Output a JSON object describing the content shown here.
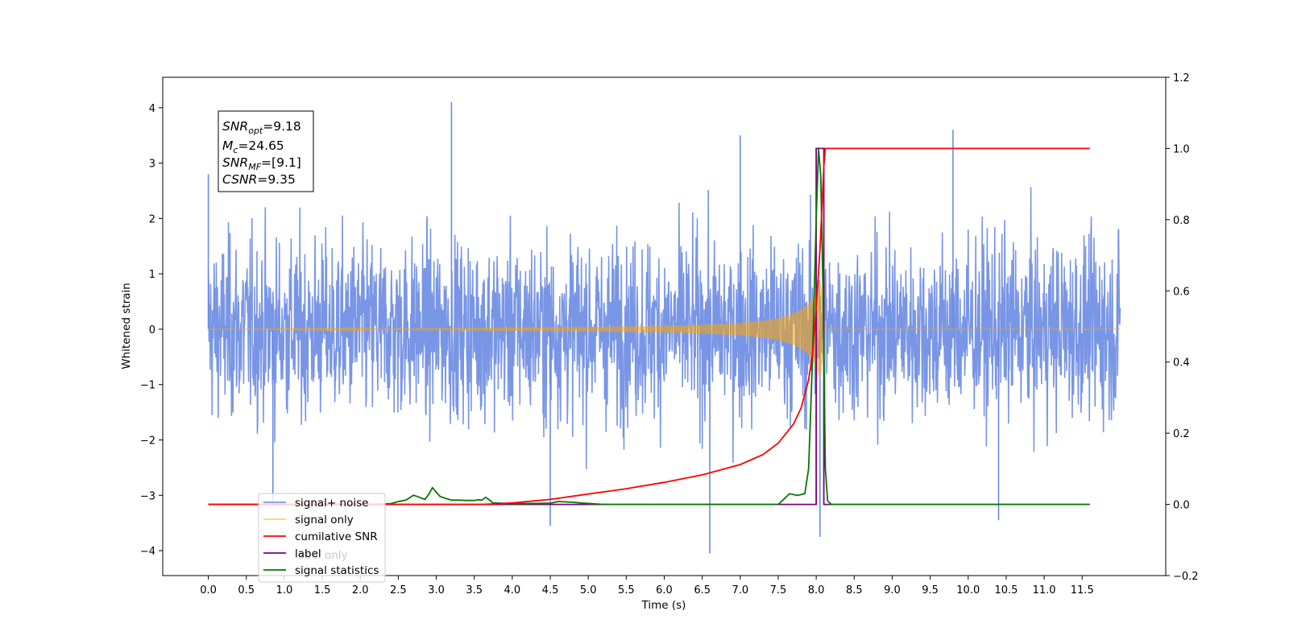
{
  "chart_data": {
    "type": "line",
    "xlabel": "Time (s)",
    "ylabel": "Whitened strain",
    "xlim": [
      -0.6,
      12.6
    ],
    "ylim": [
      -4.45,
      4.55
    ],
    "y2lim": [
      -0.2,
      1.2
    ],
    "x_ticks": [
      0.0,
      0.5,
      1.0,
      1.5,
      2.0,
      2.5,
      3.0,
      3.5,
      4.0,
      4.5,
      5.0,
      5.5,
      6.0,
      6.5,
      7.0,
      7.5,
      8.0,
      8.5,
      9.0,
      9.5,
      10.0,
      10.5,
      11.0,
      11.5
    ],
    "x_tick_labels": [
      "0.0",
      "0.5",
      "1.0",
      "1.5",
      "2.0",
      "2.5",
      "3.0",
      "3.5",
      "4.0",
      "4.5",
      "5.0",
      "5.5",
      "6.0",
      "6.5",
      "7.0",
      "7.5",
      "8.0",
      "8.5",
      "9.0",
      "9.5",
      "10.0",
      "10.5",
      "11.0",
      "11.5"
    ],
    "y_ticks": [
      -4,
      -3,
      -2,
      -1,
      0,
      1,
      2,
      3,
      4
    ],
    "y_tick_labels": [
      "−4",
      "−3",
      "−2",
      "−1",
      "0",
      "1",
      "2",
      "3",
      "4"
    ],
    "y2_ticks": [
      -0.2,
      0.0,
      0.2,
      0.4,
      0.6,
      0.8,
      1.0,
      1.2
    ],
    "y2_tick_labels": [
      "−0.2",
      "0.0",
      "0.2",
      "0.4",
      "0.6",
      "0.8",
      "1.0",
      "1.2"
    ],
    "grid": false,
    "legend_position": "bottom-left",
    "legend": [
      "signal+ noise",
      "signal only",
      "cumilative SNR",
      "label",
      "signal statistics"
    ],
    "hidden_legend_entry": "label only",
    "annotation": {
      "line1": {
        "main": "SNR",
        "sub": "opt",
        "value": "=9.18"
      },
      "line2": {
        "main": "M",
        "sub": "c",
        "value": "=24.65"
      },
      "line3": {
        "main": "SNR",
        "sub": "MF",
        "value": "=[9.1]"
      },
      "line4": {
        "main": "CSNR",
        "value": "=9.35"
      }
    },
    "series": [
      {
        "name": "signal+ noise",
        "axis": "left",
        "color": "#6a8be3",
        "x_range": [
          0.0,
          12.0
        ],
        "approx_envelope": [
          -2.6,
          2.6
        ],
        "notable_peaks": [
          [
            0.0,
            2.8
          ],
          [
            3.2,
            4.1
          ],
          [
            9.8,
            3.6
          ],
          [
            7.0,
            3.5
          ],
          [
            6.6,
            -4.05
          ],
          [
            8.05,
            -3.75
          ],
          [
            4.5,
            -3.55
          ],
          [
            10.4,
            -3.45
          ],
          [
            0.85,
            -3.2
          ]
        ]
      },
      {
        "name": "signal only",
        "axis": "left",
        "color": "#ffa500",
        "x": [
          0.0,
          2.0,
          3.0,
          4.0,
          5.0,
          6.0,
          6.5,
          7.0,
          7.3,
          7.5,
          7.7,
          7.8,
          7.9,
          7.95,
          8.0,
          8.05,
          8.08,
          8.1,
          12.0
        ],
        "amplitude": [
          0.0,
          0.01,
          0.02,
          0.03,
          0.04,
          0.06,
          0.08,
          0.11,
          0.15,
          0.2,
          0.28,
          0.35,
          0.45,
          0.55,
          0.7,
          0.9,
          0.6,
          0.0,
          0.0
        ]
      },
      {
        "name": "cumilative SNR",
        "axis": "right",
        "color": "#ff0000",
        "x": [
          0.0,
          3.6,
          4.0,
          4.5,
          5.0,
          5.5,
          6.0,
          6.5,
          7.0,
          7.3,
          7.5,
          7.7,
          7.8,
          7.9,
          7.95,
          8.0,
          8.05,
          8.1,
          8.12,
          11.6
        ],
        "y": [
          0.0,
          0.0,
          0.004,
          0.014,
          0.029,
          0.044,
          0.062,
          0.083,
          0.112,
          0.14,
          0.172,
          0.225,
          0.27,
          0.35,
          0.42,
          0.55,
          0.72,
          0.95,
          1.0,
          1.0
        ]
      },
      {
        "name": "label",
        "axis": "right",
        "color": "#800080",
        "x": [
          0.0,
          8.0,
          8.0,
          8.1,
          8.1,
          11.6
        ],
        "y": [
          0.0,
          0.0,
          1.0,
          1.0,
          0.0,
          0.0
        ]
      },
      {
        "name": "signal statistics",
        "axis": "right",
        "color": "#007a00",
        "x": [
          0.0,
          2.2,
          2.4,
          2.5,
          2.6,
          2.7,
          2.75,
          2.85,
          2.9,
          2.95,
          3.05,
          3.2,
          3.3,
          3.4,
          3.5,
          3.55,
          3.6,
          3.65,
          3.75,
          4.0,
          4.5,
          4.6,
          4.8,
          4.9,
          5.2,
          7.5,
          7.65,
          7.75,
          7.85,
          7.9,
          7.95,
          8.0,
          8.03,
          8.06,
          8.09,
          8.12,
          8.15,
          8.2,
          11.6
        ],
        "y": [
          0.0,
          0.0,
          0.002,
          0.008,
          0.012,
          0.026,
          0.022,
          0.014,
          0.028,
          0.047,
          0.022,
          0.012,
          0.012,
          0.011,
          0.011,
          0.013,
          0.012,
          0.02,
          0.004,
          0.002,
          0.003,
          0.008,
          0.006,
          0.004,
          0.0,
          0.0,
          0.03,
          0.025,
          0.03,
          0.1,
          0.4,
          0.8,
          1.0,
          0.92,
          0.6,
          0.1,
          0.01,
          0.0,
          0.0
        ]
      }
    ]
  }
}
